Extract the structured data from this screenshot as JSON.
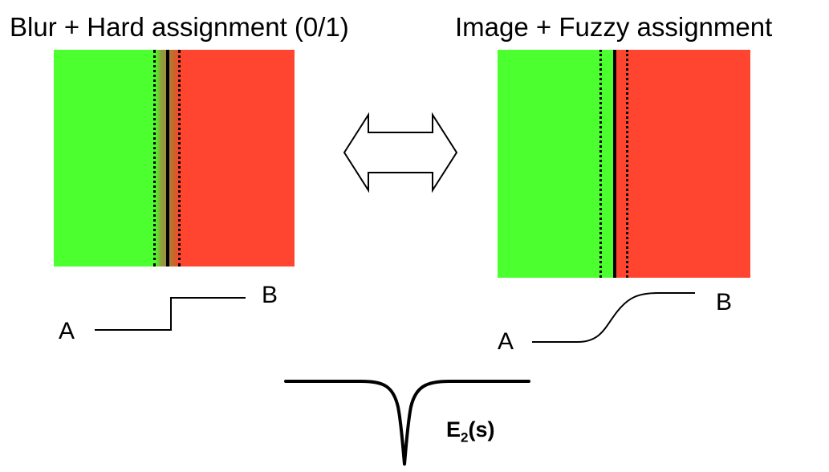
{
  "titles": {
    "left": "Blur + Hard assignment (0/1)",
    "right": "Image + Fuzzy assignment"
  },
  "colors": {
    "region_a": "#4cff2e",
    "region_b": "#ff4530",
    "blur_band": "#c36a1e",
    "line": "#000000"
  },
  "labels": {
    "left_a": "A",
    "left_b": "B",
    "right_a": "A",
    "right_b": "B"
  },
  "energy": {
    "main": "E",
    "sub": "2",
    "suffix": "(s)"
  },
  "icons": {
    "arrow": "double-arrow-icon"
  }
}
